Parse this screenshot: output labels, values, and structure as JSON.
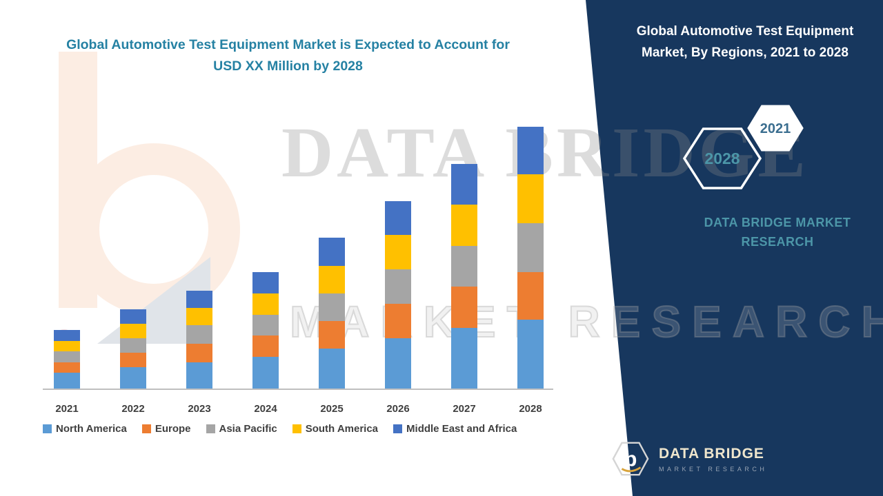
{
  "page": {
    "background": "#ffffff",
    "panel_color": "#17375E",
    "accent_teal": "#2581A3"
  },
  "left_title": "Global Automotive Test Equipment Market is Expected to Account for USD XX Million by 2028",
  "right_panel": {
    "title": "Global Automotive Test Equipment Market, By Regions, 2021 to 2028",
    "hex_2028": "2028",
    "hex_2021": "2021",
    "brand_text": "DATA BRIDGE MARKET RESEARCH",
    "logo_initial": "b",
    "logo_name": "DATA BRIDGE",
    "logo_tagline": "MARKET RESEARCH"
  },
  "watermark": {
    "line1": "DATA BRIDGE",
    "line2": "MARKET RESEARCH"
  },
  "chart_data": {
    "type": "bar",
    "stacked": true,
    "title": "Global Automotive Test Equipment Market, By Regions, 2021 to 2028",
    "categories": [
      "2021",
      "2022",
      "2023",
      "2024",
      "2025",
      "2026",
      "2027",
      "2028"
    ],
    "series": [
      {
        "name": "North America",
        "color": "#5B9BD5",
        "values": [
          6,
          8,
          10,
          12,
          15,
          19,
          23,
          26
        ]
      },
      {
        "name": "Europe",
        "color": "#ED7D31",
        "values": [
          4,
          5.5,
          7,
          8,
          10.5,
          13,
          15.5,
          18
        ]
      },
      {
        "name": "Asia Pacific",
        "color": "#A5A5A5",
        "values": [
          4,
          5.5,
          7,
          8,
          10.5,
          13,
          15.5,
          18.5
        ]
      },
      {
        "name": "South America",
        "color": "#FFC000",
        "values": [
          4,
          5.5,
          6.5,
          8,
          10.5,
          13,
          15.5,
          18.5
        ]
      },
      {
        "name": "Middle East and Africa",
        "color": "#4472C4",
        "values": [
          4,
          5.5,
          6.5,
          8,
          10.5,
          13,
          15.5,
          18
        ]
      }
    ],
    "totals": [
      22,
      30,
      37,
      44,
      57,
      71,
      85,
      99
    ],
    "units": "USD XX Million (index, no y-axis scale shown)",
    "xlabel": "",
    "ylabel": "",
    "y_axis_visible": false,
    "gridlines": false,
    "legend_position": "bottom"
  }
}
